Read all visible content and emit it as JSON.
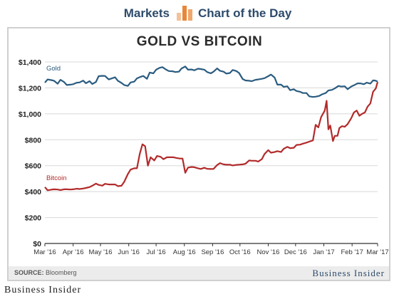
{
  "header": {
    "markets": "Markets",
    "chart_of_the_day": "Chart of the Day"
  },
  "footer": {
    "source_label": "SOURCE:",
    "source_value": "Bloomberg",
    "brand_right": "Business Insider",
    "brand_bottom": "Business Insider"
  },
  "colors": {
    "gold": "#2a5c80",
    "bitcoin": "#b22a2a",
    "header_text": "#2d4a6b",
    "icon_orange": "#e8873a"
  },
  "chart_data": {
    "type": "line",
    "title": "GOLD VS BITCOIN",
    "xlabel": "",
    "ylabel": "",
    "ylim": [
      0,
      1400
    ],
    "yticks": [
      0,
      200,
      400,
      600,
      800,
      1000,
      1200,
      1400
    ],
    "ytick_labels": [
      "$0",
      "$200",
      "$400",
      "$600",
      "$800",
      "$1,000",
      "$1,200",
      "$1,400"
    ],
    "grid": true,
    "xlim": [
      "2016-03-01",
      "2017-03-01"
    ],
    "xticks": [
      "2016-03-01",
      "2016-04-01",
      "2016-05-01",
      "2016-06-01",
      "2016-07-01",
      "2016-08-01",
      "2016-09-01",
      "2016-10-01",
      "2016-11-01",
      "2016-12-01",
      "2017-01-01",
      "2017-02-01",
      "2017-03-01"
    ],
    "xtick_labels": [
      "Mar '16",
      "Apr '16",
      "May '16",
      "Jun '16",
      "Jul '16",
      "Aug '16",
      "Sep '16",
      "Oct '16",
      "Nov '16",
      "Dec '16",
      "Jan '17",
      "Feb '17",
      "Mar '17"
    ],
    "series": [
      {
        "name": "Gold",
        "color_key": "gold",
        "points": [
          [
            "2016-03-01",
            1240
          ],
          [
            "2016-03-04",
            1265
          ],
          [
            "2016-03-08",
            1260
          ],
          [
            "2016-03-11",
            1255
          ],
          [
            "2016-03-15",
            1232
          ],
          [
            "2016-03-18",
            1262
          ],
          [
            "2016-03-22",
            1245
          ],
          [
            "2016-03-25",
            1222
          ],
          [
            "2016-03-29",
            1225
          ],
          [
            "2016-04-01",
            1228
          ],
          [
            "2016-04-05",
            1240
          ],
          [
            "2016-04-08",
            1242
          ],
          [
            "2016-04-12",
            1256
          ],
          [
            "2016-04-15",
            1236
          ],
          [
            "2016-04-19",
            1252
          ],
          [
            "2016-04-22",
            1230
          ],
          [
            "2016-04-26",
            1245
          ],
          [
            "2016-04-29",
            1290
          ],
          [
            "2016-05-03",
            1293
          ],
          [
            "2016-05-06",
            1292
          ],
          [
            "2016-05-10",
            1265
          ],
          [
            "2016-05-13",
            1272
          ],
          [
            "2016-05-17",
            1282
          ],
          [
            "2016-05-20",
            1255
          ],
          [
            "2016-05-24",
            1238
          ],
          [
            "2016-05-27",
            1222
          ],
          [
            "2016-05-31",
            1215
          ],
          [
            "2016-06-03",
            1242
          ],
          [
            "2016-06-07",
            1248
          ],
          [
            "2016-06-10",
            1273
          ],
          [
            "2016-06-14",
            1285
          ],
          [
            "2016-06-17",
            1292
          ],
          [
            "2016-06-21",
            1270
          ],
          [
            "2016-06-24",
            1318
          ],
          [
            "2016-06-28",
            1312
          ],
          [
            "2016-07-01",
            1340
          ],
          [
            "2016-07-05",
            1355
          ],
          [
            "2016-07-08",
            1360
          ],
          [
            "2016-07-12",
            1340
          ],
          [
            "2016-07-15",
            1330
          ],
          [
            "2016-07-19",
            1328
          ],
          [
            "2016-07-22",
            1322
          ],
          [
            "2016-07-26",
            1325
          ],
          [
            "2016-07-29",
            1350
          ],
          [
            "2016-08-02",
            1365
          ],
          [
            "2016-08-05",
            1340
          ],
          [
            "2016-08-09",
            1342
          ],
          [
            "2016-08-12",
            1335
          ],
          [
            "2016-08-16",
            1348
          ],
          [
            "2016-08-19",
            1345
          ],
          [
            "2016-08-23",
            1340
          ],
          [
            "2016-08-26",
            1322
          ],
          [
            "2016-08-30",
            1312
          ],
          [
            "2016-09-02",
            1325
          ],
          [
            "2016-09-06",
            1350
          ],
          [
            "2016-09-09",
            1332
          ],
          [
            "2016-09-13",
            1325
          ],
          [
            "2016-09-16",
            1310
          ],
          [
            "2016-09-20",
            1315
          ],
          [
            "2016-09-23",
            1338
          ],
          [
            "2016-09-27",
            1330
          ],
          [
            "2016-09-30",
            1315
          ],
          [
            "2016-10-04",
            1268
          ],
          [
            "2016-10-07",
            1257
          ],
          [
            "2016-10-11",
            1255
          ],
          [
            "2016-10-14",
            1252
          ],
          [
            "2016-10-18",
            1262
          ],
          [
            "2016-10-21",
            1265
          ],
          [
            "2016-10-25",
            1270
          ],
          [
            "2016-10-28",
            1275
          ],
          [
            "2016-11-01",
            1290
          ],
          [
            "2016-11-04",
            1303
          ],
          [
            "2016-11-08",
            1280
          ],
          [
            "2016-11-11",
            1225
          ],
          [
            "2016-11-15",
            1225
          ],
          [
            "2016-11-18",
            1208
          ],
          [
            "2016-11-22",
            1212
          ],
          [
            "2016-11-25",
            1182
          ],
          [
            "2016-11-29",
            1190
          ],
          [
            "2016-12-02",
            1176
          ],
          [
            "2016-12-06",
            1170
          ],
          [
            "2016-12-09",
            1160
          ],
          [
            "2016-12-13",
            1160
          ],
          [
            "2016-12-16",
            1135
          ],
          [
            "2016-12-20",
            1130
          ],
          [
            "2016-12-23",
            1132
          ],
          [
            "2016-12-27",
            1138
          ],
          [
            "2016-12-30",
            1150
          ],
          [
            "2017-01-03",
            1160
          ],
          [
            "2017-01-06",
            1180
          ],
          [
            "2017-01-10",
            1185
          ],
          [
            "2017-01-13",
            1196
          ],
          [
            "2017-01-17",
            1215
          ],
          [
            "2017-01-20",
            1210
          ],
          [
            "2017-01-24",
            1212
          ],
          [
            "2017-01-27",
            1190
          ],
          [
            "2017-01-31",
            1210
          ],
          [
            "2017-02-03",
            1220
          ],
          [
            "2017-02-07",
            1235
          ],
          [
            "2017-02-10",
            1235
          ],
          [
            "2017-02-14",
            1228
          ],
          [
            "2017-02-17",
            1240
          ],
          [
            "2017-02-21",
            1233
          ],
          [
            "2017-02-24",
            1258
          ],
          [
            "2017-02-27",
            1255
          ],
          [
            "2017-03-01",
            1248
          ]
        ]
      },
      {
        "name": "Bitcoin",
        "color_key": "bitcoin",
        "points": [
          [
            "2016-03-01",
            435
          ],
          [
            "2016-03-04",
            410
          ],
          [
            "2016-03-08",
            415
          ],
          [
            "2016-03-11",
            418
          ],
          [
            "2016-03-15",
            416
          ],
          [
            "2016-03-18",
            412
          ],
          [
            "2016-03-22",
            418
          ],
          [
            "2016-03-25",
            418
          ],
          [
            "2016-03-29",
            416
          ],
          [
            "2016-04-01",
            418
          ],
          [
            "2016-04-05",
            422
          ],
          [
            "2016-04-08",
            420
          ],
          [
            "2016-04-12",
            424
          ],
          [
            "2016-04-15",
            428
          ],
          [
            "2016-04-19",
            435
          ],
          [
            "2016-04-22",
            445
          ],
          [
            "2016-04-26",
            462
          ],
          [
            "2016-04-29",
            452
          ],
          [
            "2016-05-03",
            446
          ],
          [
            "2016-05-06",
            460
          ],
          [
            "2016-05-10",
            455
          ],
          [
            "2016-05-13",
            455
          ],
          [
            "2016-05-17",
            455
          ],
          [
            "2016-05-20",
            442
          ],
          [
            "2016-05-24",
            445
          ],
          [
            "2016-05-27",
            475
          ],
          [
            "2016-05-31",
            535
          ],
          [
            "2016-06-03",
            570
          ],
          [
            "2016-06-07",
            580
          ],
          [
            "2016-06-10",
            580
          ],
          [
            "2016-06-13",
            690
          ],
          [
            "2016-06-16",
            765
          ],
          [
            "2016-06-19",
            750
          ],
          [
            "2016-06-22",
            600
          ],
          [
            "2016-06-25",
            665
          ],
          [
            "2016-06-29",
            640
          ],
          [
            "2016-07-02",
            675
          ],
          [
            "2016-07-06",
            668
          ],
          [
            "2016-07-09",
            650
          ],
          [
            "2016-07-13",
            665
          ],
          [
            "2016-07-16",
            665
          ],
          [
            "2016-07-20",
            665
          ],
          [
            "2016-07-23",
            660
          ],
          [
            "2016-07-27",
            655
          ],
          [
            "2016-07-30",
            655
          ],
          [
            "2016-08-02",
            545
          ],
          [
            "2016-08-05",
            585
          ],
          [
            "2016-08-09",
            590
          ],
          [
            "2016-08-12",
            588
          ],
          [
            "2016-08-16",
            580
          ],
          [
            "2016-08-19",
            575
          ],
          [
            "2016-08-23",
            584
          ],
          [
            "2016-08-26",
            576
          ],
          [
            "2016-08-30",
            574
          ],
          [
            "2016-09-02",
            575
          ],
          [
            "2016-09-06",
            605
          ],
          [
            "2016-09-09",
            620
          ],
          [
            "2016-09-13",
            610
          ],
          [
            "2016-09-16",
            607
          ],
          [
            "2016-09-20",
            608
          ],
          [
            "2016-09-23",
            602
          ],
          [
            "2016-09-27",
            606
          ],
          [
            "2016-09-30",
            608
          ],
          [
            "2016-10-04",
            610
          ],
          [
            "2016-10-07",
            615
          ],
          [
            "2016-10-11",
            640
          ],
          [
            "2016-10-14",
            638
          ],
          [
            "2016-10-18",
            638
          ],
          [
            "2016-10-21",
            632
          ],
          [
            "2016-10-25",
            650
          ],
          [
            "2016-10-28",
            690
          ],
          [
            "2016-11-01",
            720
          ],
          [
            "2016-11-04",
            700
          ],
          [
            "2016-11-08",
            705
          ],
          [
            "2016-11-11",
            712
          ],
          [
            "2016-11-15",
            705
          ],
          [
            "2016-11-18",
            730
          ],
          [
            "2016-11-22",
            745
          ],
          [
            "2016-11-25",
            735
          ],
          [
            "2016-11-29",
            738
          ],
          [
            "2016-12-02",
            760
          ],
          [
            "2016-12-06",
            762
          ],
          [
            "2016-12-09",
            770
          ],
          [
            "2016-12-13",
            778
          ],
          [
            "2016-12-16",
            785
          ],
          [
            "2016-12-20",
            795
          ],
          [
            "2016-12-23",
            915
          ],
          [
            "2016-12-26",
            895
          ],
          [
            "2016-12-29",
            975
          ],
          [
            "2017-01-02",
            1025
          ],
          [
            "2017-01-04",
            1100
          ],
          [
            "2017-01-06",
            880
          ],
          [
            "2017-01-08",
            910
          ],
          [
            "2017-01-11",
            790
          ],
          [
            "2017-01-13",
            830
          ],
          [
            "2017-01-16",
            830
          ],
          [
            "2017-01-18",
            890
          ],
          [
            "2017-01-21",
            905
          ],
          [
            "2017-01-24",
            900
          ],
          [
            "2017-01-27",
            920
          ],
          [
            "2017-01-31",
            965
          ],
          [
            "2017-02-03",
            1010
          ],
          [
            "2017-02-06",
            1025
          ],
          [
            "2017-02-09",
            985
          ],
          [
            "2017-02-12",
            1000
          ],
          [
            "2017-02-15",
            1010
          ],
          [
            "2017-02-18",
            1055
          ],
          [
            "2017-02-21",
            1080
          ],
          [
            "2017-02-24",
            1170
          ],
          [
            "2017-02-27",
            1195
          ],
          [
            "2017-03-01",
            1245
          ]
        ]
      }
    ]
  }
}
